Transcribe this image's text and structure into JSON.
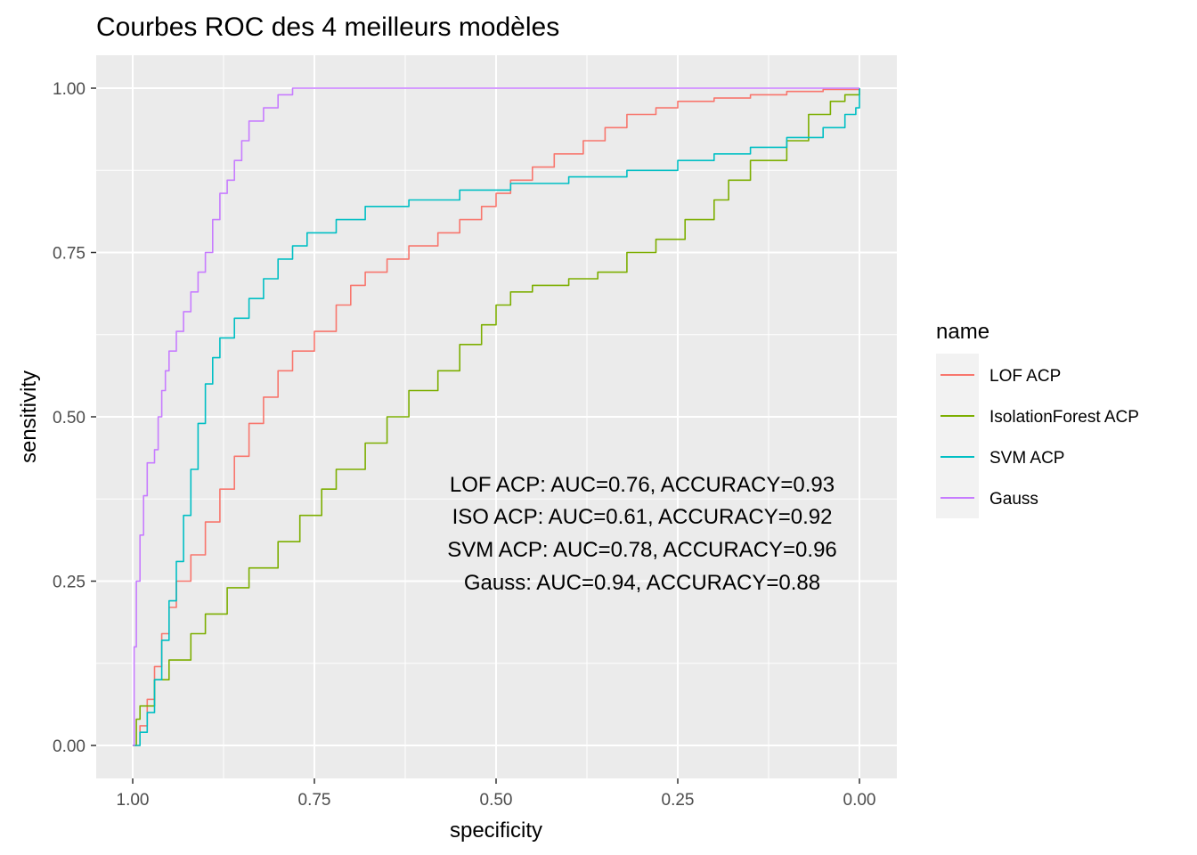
{
  "chart_data": {
    "type": "line",
    "title": "Courbes ROC des 4 meilleurs modèles",
    "xlabel": "specificity",
    "ylabel": "sensitivity",
    "xlim": [
      1.0,
      0.0
    ],
    "ylim": [
      0.0,
      1.0
    ],
    "x_reversed": true,
    "grid": true,
    "x_ticks": [
      1.0,
      0.75,
      0.5,
      0.25,
      0.0
    ],
    "x_tick_labels": [
      "1.00",
      "0.75",
      "0.50",
      "0.25",
      "0.00"
    ],
    "y_ticks": [
      0.0,
      0.25,
      0.5,
      0.75,
      1.0
    ],
    "y_tick_labels": [
      "0.00",
      "0.25",
      "0.50",
      "0.75",
      "1.00"
    ],
    "legend": {
      "title": "name",
      "position": "right"
    },
    "annotations": [
      "LOF ACP: AUC=0.76, ACCURACY=0.93",
      "ISO ACP: AUC=0.61, ACCURACY=0.92",
      "SVM ACP: AUC=0.78, ACCURACY=0.96",
      "Gauss: AUC=0.94, ACCURACY=0.88"
    ],
    "series": [
      {
        "name": "LOF ACP",
        "color": "#F8766D",
        "points": [
          [
            1.0,
            0.0
          ],
          [
            0.99,
            0.03
          ],
          [
            0.98,
            0.07
          ],
          [
            0.97,
            0.12
          ],
          [
            0.96,
            0.17
          ],
          [
            0.95,
            0.21
          ],
          [
            0.94,
            0.25
          ],
          [
            0.92,
            0.29
          ],
          [
            0.9,
            0.34
          ],
          [
            0.88,
            0.39
          ],
          [
            0.86,
            0.44
          ],
          [
            0.84,
            0.49
          ],
          [
            0.82,
            0.53
          ],
          [
            0.8,
            0.57
          ],
          [
            0.78,
            0.6
          ],
          [
            0.75,
            0.63
          ],
          [
            0.72,
            0.67
          ],
          [
            0.7,
            0.7
          ],
          [
            0.68,
            0.72
          ],
          [
            0.65,
            0.74
          ],
          [
            0.62,
            0.76
          ],
          [
            0.58,
            0.78
          ],
          [
            0.55,
            0.8
          ],
          [
            0.52,
            0.82
          ],
          [
            0.5,
            0.84
          ],
          [
            0.48,
            0.86
          ],
          [
            0.45,
            0.88
          ],
          [
            0.42,
            0.9
          ],
          [
            0.38,
            0.92
          ],
          [
            0.35,
            0.94
          ],
          [
            0.32,
            0.96
          ],
          [
            0.28,
            0.97
          ],
          [
            0.25,
            0.98
          ],
          [
            0.2,
            0.985
          ],
          [
            0.15,
            0.99
          ],
          [
            0.1,
            0.995
          ],
          [
            0.05,
            0.998
          ],
          [
            0.0,
            1.0
          ]
        ]
      },
      {
        "name": "IsolationForest ACP",
        "color": "#7CAE00",
        "points": [
          [
            1.0,
            0.0
          ],
          [
            0.995,
            0.04
          ],
          [
            0.99,
            0.06
          ],
          [
            0.97,
            0.1
          ],
          [
            0.95,
            0.13
          ],
          [
            0.92,
            0.17
          ],
          [
            0.9,
            0.2
          ],
          [
            0.87,
            0.24
          ],
          [
            0.84,
            0.27
          ],
          [
            0.8,
            0.31
          ],
          [
            0.77,
            0.35
          ],
          [
            0.74,
            0.39
          ],
          [
            0.72,
            0.42
          ],
          [
            0.68,
            0.46
          ],
          [
            0.65,
            0.5
          ],
          [
            0.62,
            0.54
          ],
          [
            0.58,
            0.57
          ],
          [
            0.55,
            0.61
          ],
          [
            0.52,
            0.64
          ],
          [
            0.5,
            0.67
          ],
          [
            0.48,
            0.69
          ],
          [
            0.45,
            0.7
          ],
          [
            0.4,
            0.71
          ],
          [
            0.36,
            0.72
          ],
          [
            0.32,
            0.75
          ],
          [
            0.28,
            0.77
          ],
          [
            0.24,
            0.8
          ],
          [
            0.2,
            0.83
          ],
          [
            0.18,
            0.86
          ],
          [
            0.15,
            0.89
          ],
          [
            0.1,
            0.92
          ],
          [
            0.07,
            0.96
          ],
          [
            0.04,
            0.98
          ],
          [
            0.02,
            0.99
          ],
          [
            0.0,
            1.0
          ]
        ]
      },
      {
        "name": "SVM ACP",
        "color": "#00BFC4",
        "points": [
          [
            1.0,
            0.0
          ],
          [
            0.99,
            0.02
          ],
          [
            0.98,
            0.05
          ],
          [
            0.97,
            0.1
          ],
          [
            0.96,
            0.16
          ],
          [
            0.95,
            0.22
          ],
          [
            0.94,
            0.28
          ],
          [
            0.93,
            0.35
          ],
          [
            0.92,
            0.42
          ],
          [
            0.91,
            0.49
          ],
          [
            0.9,
            0.55
          ],
          [
            0.89,
            0.59
          ],
          [
            0.88,
            0.62
          ],
          [
            0.86,
            0.65
          ],
          [
            0.84,
            0.68
          ],
          [
            0.82,
            0.71
          ],
          [
            0.8,
            0.74
          ],
          [
            0.78,
            0.76
          ],
          [
            0.76,
            0.78
          ],
          [
            0.72,
            0.8
          ],
          [
            0.68,
            0.82
          ],
          [
            0.62,
            0.83
          ],
          [
            0.55,
            0.845
          ],
          [
            0.48,
            0.855
          ],
          [
            0.4,
            0.865
          ],
          [
            0.32,
            0.875
          ],
          [
            0.25,
            0.89
          ],
          [
            0.2,
            0.9
          ],
          [
            0.15,
            0.91
          ],
          [
            0.1,
            0.925
          ],
          [
            0.05,
            0.94
          ],
          [
            0.02,
            0.96
          ],
          [
            0.005,
            0.97
          ],
          [
            0.0,
            1.0
          ]
        ]
      },
      {
        "name": "Gauss",
        "color": "#C77CFF",
        "points": [
          [
            1.0,
            0.0
          ],
          [
            0.998,
            0.15
          ],
          [
            0.995,
            0.25
          ],
          [
            0.99,
            0.32
          ],
          [
            0.985,
            0.38
          ],
          [
            0.98,
            0.43
          ],
          [
            0.97,
            0.45
          ],
          [
            0.965,
            0.5
          ],
          [
            0.96,
            0.54
          ],
          [
            0.955,
            0.57
          ],
          [
            0.95,
            0.6
          ],
          [
            0.94,
            0.63
          ],
          [
            0.93,
            0.66
          ],
          [
            0.92,
            0.69
          ],
          [
            0.91,
            0.72
          ],
          [
            0.9,
            0.75
          ],
          [
            0.89,
            0.8
          ],
          [
            0.88,
            0.84
          ],
          [
            0.87,
            0.86
          ],
          [
            0.86,
            0.89
          ],
          [
            0.85,
            0.92
          ],
          [
            0.84,
            0.95
          ],
          [
            0.82,
            0.97
          ],
          [
            0.8,
            0.99
          ],
          [
            0.78,
            1.0
          ],
          [
            0.5,
            1.0
          ],
          [
            0.0,
            1.0
          ]
        ]
      }
    ]
  }
}
